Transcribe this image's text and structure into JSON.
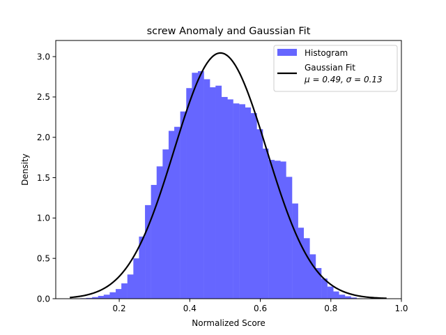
{
  "chart_data": {
    "type": "bar",
    "title": "screw Anomaly and Gaussian Fit",
    "xlabel": "Normalized Score",
    "ylabel": "Density",
    "xlim": [
      0.02,
      1.0
    ],
    "ylim": [
      0,
      3.2
    ],
    "xticks": [
      "0.2",
      "0.4",
      "0.6",
      "0.8",
      "1.0"
    ],
    "xtick_values": [
      0.2,
      0.4,
      0.6,
      0.8,
      1.0
    ],
    "yticks": [
      "0.0",
      "0.5",
      "1.0",
      "1.5",
      "2.0",
      "2.5",
      "3.0"
    ],
    "ytick_values": [
      0.0,
      0.5,
      1.0,
      1.5,
      2.0,
      2.5,
      3.0
    ],
    "grid": false,
    "legend_position": "top-right",
    "series": [
      {
        "name": "Histogram",
        "kind": "histogram",
        "color": "#6666ff",
        "bin_width": 0.0167,
        "bin_left": [
          0.073,
          0.09,
          0.106,
          0.123,
          0.14,
          0.156,
          0.173,
          0.19,
          0.206,
          0.223,
          0.24,
          0.256,
          0.273,
          0.29,
          0.306,
          0.323,
          0.34,
          0.356,
          0.373,
          0.39,
          0.406,
          0.423,
          0.44,
          0.456,
          0.473,
          0.49,
          0.506,
          0.523,
          0.54,
          0.556,
          0.573,
          0.59,
          0.606,
          0.623,
          0.64,
          0.656,
          0.673,
          0.69,
          0.706,
          0.723,
          0.74,
          0.756,
          0.773,
          0.79,
          0.806,
          0.823,
          0.84,
          0.856,
          0.873
        ],
        "values": [
          0.003,
          0.006,
          0.01,
          0.02,
          0.035,
          0.05,
          0.08,
          0.12,
          0.19,
          0.3,
          0.5,
          0.77,
          1.16,
          1.41,
          1.64,
          1.85,
          2.08,
          2.13,
          2.32,
          2.61,
          2.8,
          2.82,
          2.72,
          2.62,
          2.64,
          2.5,
          2.47,
          2.42,
          2.41,
          2.37,
          2.3,
          2.1,
          1.86,
          1.72,
          1.71,
          1.7,
          1.51,
          1.18,
          0.88,
          0.75,
          0.55,
          0.38,
          0.25,
          0.15,
          0.09,
          0.05,
          0.03,
          0.015,
          0.005
        ]
      },
      {
        "name": "Gaussian Fit",
        "kind": "line",
        "color": "#000000",
        "mu": 0.487,
        "sigma": 0.131,
        "x_range": [
          0.06,
          0.958
        ]
      }
    ],
    "legend": {
      "items": [
        {
          "label": "Histogram"
        },
        {
          "label": "Gaussian Fit",
          "sublabel": "μ = 0.49,  σ = 0.13"
        }
      ]
    }
  }
}
